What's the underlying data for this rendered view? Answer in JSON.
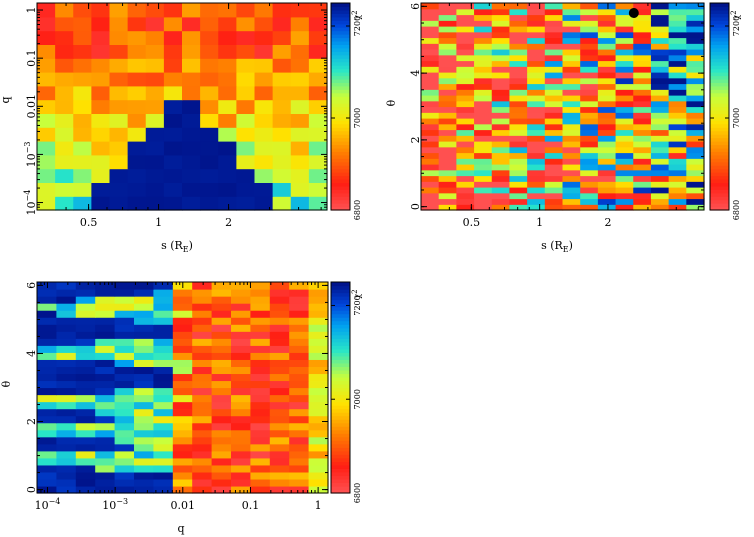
{
  "chart_data": [
    {
      "id": "panel-top-left",
      "type": "heatmap",
      "title": "",
      "xlabel": "s (R_E)",
      "ylabel": "q",
      "xscale": "log",
      "yscale": "log",
      "xlim": [
        0.3,
        5.3
      ],
      "ylim": [
        7e-05,
        1.4
      ],
      "xticks": [
        {
          "value": 0.5,
          "label": "0.5"
        },
        {
          "value": 1,
          "label": "1"
        },
        {
          "value": 2,
          "label": "2"
        }
      ],
      "yticks": [
        {
          "value": 0.0001,
          "label": "10^-4"
        },
        {
          "value": 0.001,
          "label": "10^-3"
        },
        {
          "value": 0.01,
          "label": "0.01"
        },
        {
          "value": 0.1,
          "label": "0.1"
        },
        {
          "value": 1,
          "label": "1"
        }
      ],
      "nx": 16,
      "ny": 15,
      "pattern": "wedge",
      "colorbar": {
        "label": "χ²",
        "range": [
          6800,
          7250
        ],
        "ticks": [
          {
            "value": 6800,
            "label": "6800"
          },
          {
            "value": 7000,
            "label": "7000"
          },
          {
            "value": 7200,
            "label": "7200"
          }
        ]
      },
      "marker": null
    },
    {
      "id": "panel-top-right",
      "type": "heatmap",
      "title": "",
      "xlabel": "s (R_E)",
      "ylabel": "θ",
      "xscale": "log",
      "yscale": "linear",
      "xlim": [
        0.3,
        5.3
      ],
      "ylim": [
        -0.1,
        6.1
      ],
      "xticks": [
        {
          "value": 0.5,
          "label": "0.5"
        },
        {
          "value": 1,
          "label": "1"
        },
        {
          "value": 2,
          "label": "2"
        }
      ],
      "yticks": [
        {
          "value": 0,
          "label": "0"
        },
        {
          "value": 2,
          "label": "2"
        },
        {
          "value": 4,
          "label": "4"
        },
        {
          "value": 6,
          "label": "6"
        }
      ],
      "nx": 16,
      "ny": 36,
      "pattern": "bands",
      "colorbar": {
        "label": "χ²",
        "range": [
          6800,
          7250
        ],
        "ticks": [
          {
            "value": 6800,
            "label": "6800"
          },
          {
            "value": 7000,
            "label": "7000"
          },
          {
            "value": 7200,
            "label": "7200"
          }
        ]
      },
      "marker": {
        "x": 2.6,
        "y": 5.8
      }
    },
    {
      "id": "panel-bottom",
      "type": "heatmap",
      "title": "",
      "xlabel": "q",
      "ylabel": "θ",
      "xscale": "log",
      "yscale": "linear",
      "xlim": [
        7e-05,
        1.4
      ],
      "ylim": [
        -0.1,
        6.1
      ],
      "xticks": [
        {
          "value": 0.0001,
          "label": "10^-4"
        },
        {
          "value": 0.001,
          "label": "10^-3"
        },
        {
          "value": 0.01,
          "label": "0.01"
        },
        {
          "value": 0.1,
          "label": "0.1"
        },
        {
          "value": 1,
          "label": "1"
        }
      ],
      "yticks": [
        {
          "value": 0,
          "label": "0"
        },
        {
          "value": 2,
          "label": "2"
        },
        {
          "value": 4,
          "label": "4"
        },
        {
          "value": 6,
          "label": "6"
        }
      ],
      "nx": 15,
      "ny": 30,
      "pattern": "qtheta",
      "colorbar": {
        "label": "χ²",
        "range": [
          6800,
          7250
        ],
        "ticks": [
          {
            "value": 6800,
            "label": "6800"
          },
          {
            "value": 7000,
            "label": "7000"
          },
          {
            "value": 7200,
            "label": "7200"
          }
        ]
      },
      "marker": null
    }
  ]
}
